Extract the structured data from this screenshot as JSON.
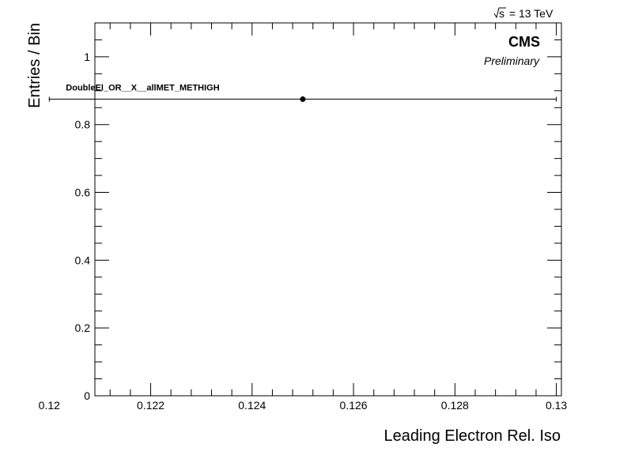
{
  "chart_data": {
    "type": "scatter",
    "title": "",
    "xlabel": "Leading Electron Rel. Iso",
    "ylabel": "Entries / Bin",
    "xlim": [
      0.1209,
      0.1301
    ],
    "ylim": [
      0,
      1.1
    ],
    "x_ticks": [
      0.12,
      0.122,
      0.124,
      0.126,
      0.128,
      0.13
    ],
    "x_tick_labels": [
      "0.12",
      "0.122",
      "0.124",
      "0.126",
      "0.128",
      "0.13"
    ],
    "y_ticks": [
      0,
      0.2,
      0.4,
      0.6,
      0.8,
      1
    ],
    "y_tick_labels": [
      "0",
      "0.2",
      "0.4",
      "0.6",
      "0.8",
      "1"
    ],
    "grid": false,
    "series": [
      {
        "name": "DoubleEl_OR__X__allMET_METHIGH",
        "points": [
          {
            "x": 0.125,
            "y": 0.875,
            "xlow": 0.12,
            "xhigh": 0.13
          }
        ]
      }
    ],
    "annotations": {
      "experiment": "CMS",
      "status": "Preliminary",
      "energy_prefix": "s",
      "energy_suffix": " = 13 TeV"
    }
  }
}
